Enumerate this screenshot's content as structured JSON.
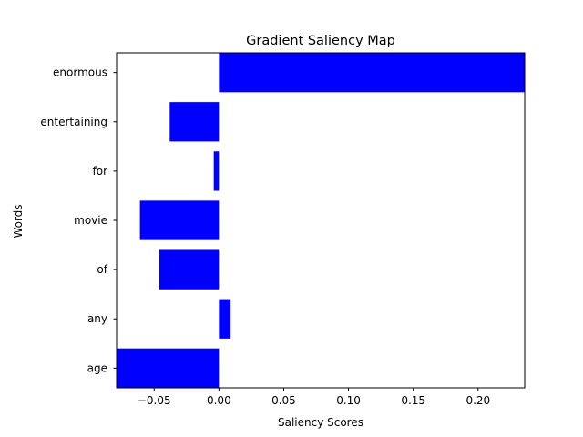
{
  "chart_data": {
    "type": "bar",
    "orientation": "horizontal",
    "title": "Gradient Saliency Map",
    "xlabel": "Saliency Scores",
    "ylabel": "Words",
    "categories": [
      "age",
      "any",
      "of",
      "movie",
      "for",
      "entertaining",
      "enormous"
    ],
    "values": [
      -0.085,
      0.009,
      -0.046,
      -0.061,
      -0.004,
      -0.038,
      0.245
    ],
    "xlim": [
      -0.079,
      0.236
    ],
    "xticks": [
      -0.05,
      0.0,
      0.05,
      0.1,
      0.15,
      0.2
    ],
    "xtick_labels": [
      "−0.05",
      "0.00",
      "0.05",
      "0.10",
      "0.15",
      "0.20"
    ],
    "bar_color": "#0000ff",
    "grid": false
  }
}
